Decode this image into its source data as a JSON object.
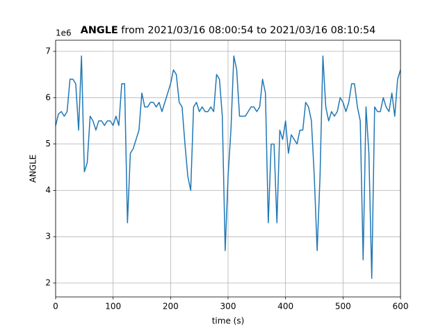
{
  "chart_data": {
    "type": "line",
    "title_prefix": "ANGLE",
    "title": "from 2021/03/16 08:00:54 to 2021/03/16 08:10:54",
    "xlabel": "time (s)",
    "ylabel": "ANGLE",
    "offset_label": "1e6",
    "color": "#1f77b4",
    "grid": true,
    "xlim": [
      0,
      600
    ],
    "ylim": [
      1.7,
      7.24
    ],
    "xticks": [
      0,
      100,
      200,
      300,
      400,
      500,
      600
    ],
    "yticks": [
      2,
      3,
      4,
      5,
      6,
      7
    ],
    "x": [
      0,
      5,
      10,
      15,
      20,
      25,
      30,
      35,
      40,
      45,
      50,
      55,
      60,
      65,
      70,
      75,
      80,
      85,
      90,
      95,
      100,
      105,
      110,
      115,
      120,
      125,
      130,
      135,
      140,
      145,
      150,
      155,
      160,
      165,
      170,
      175,
      180,
      185,
      190,
      195,
      200,
      205,
      210,
      215,
      220,
      225,
      230,
      235,
      240,
      245,
      250,
      255,
      260,
      265,
      270,
      275,
      280,
      285,
      290,
      295,
      300,
      305,
      310,
      315,
      320,
      325,
      330,
      335,
      340,
      345,
      350,
      355,
      360,
      365,
      370,
      375,
      380,
      385,
      390,
      395,
      400,
      405,
      410,
      415,
      420,
      425,
      430,
      435,
      440,
      445,
      450,
      455,
      460,
      465,
      470,
      475,
      480,
      485,
      490,
      495,
      500,
      505,
      510,
      515,
      520,
      525,
      530,
      535,
      540,
      545,
      550,
      555,
      560,
      565,
      570,
      575,
      580,
      585,
      590,
      595,
      600
    ],
    "values": [
      5.4,
      5.65,
      5.7,
      5.6,
      5.7,
      6.4,
      6.4,
      6.3,
      5.3,
      6.9,
      4.4,
      4.6,
      5.6,
      5.5,
      5.3,
      5.5,
      5.5,
      5.4,
      5.5,
      5.5,
      5.4,
      5.6,
      5.4,
      6.3,
      6.3,
      3.3,
      4.8,
      4.9,
      5.1,
      5.3,
      6.1,
      5.8,
      5.8,
      5.9,
      5.9,
      5.8,
      5.9,
      5.7,
      5.9,
      6.1,
      6.3,
      6.6,
      6.5,
      5.9,
      5.8,
      5.0,
      4.3,
      4.0,
      5.8,
      5.9,
      5.7,
      5.8,
      5.7,
      5.7,
      5.8,
      5.7,
      6.5,
      6.4,
      5.6,
      2.7,
      4.3,
      5.3,
      6.9,
      6.6,
      5.6,
      5.6,
      5.6,
      5.7,
      5.8,
      5.8,
      5.7,
      5.8,
      6.4,
      6.1,
      3.3,
      5.0,
      5.0,
      3.3,
      5.3,
      5.1,
      5.5,
      4.8,
      5.2,
      5.1,
      5.0,
      5.3,
      5.3,
      5.9,
      5.8,
      5.5,
      4.3,
      2.7,
      4.3,
      6.9,
      5.8,
      5.5,
      5.7,
      5.6,
      5.7,
      6.0,
      5.9,
      5.7,
      5.9,
      6.3,
      6.3,
      5.8,
      5.5,
      2.5,
      5.8,
      4.8,
      2.1,
      5.8,
      5.7,
      5.7,
      6.0,
      5.8,
      5.7,
      6.1,
      5.6,
      6.4,
      6.6
    ]
  }
}
